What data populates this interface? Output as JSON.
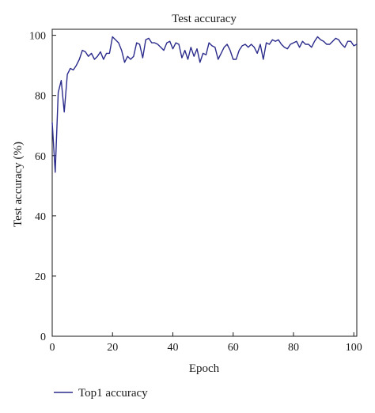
{
  "chart_data": {
    "type": "line",
    "title": "Test accuracy",
    "xlabel": "Epoch",
    "ylabel": "Test accuracy (%)",
    "xlim": [
      0,
      101
    ],
    "ylim": [
      0,
      102
    ],
    "xticks": [
      "0",
      "20",
      "40",
      "60",
      "80",
      "100"
    ],
    "yticks": [
      "0",
      "20",
      "40",
      "60",
      "80",
      "100"
    ],
    "xtick_values": [
      0,
      20,
      40,
      60,
      80,
      100
    ],
    "ytick_values": [
      0,
      20,
      40,
      60,
      80,
      100
    ],
    "grid": false,
    "legend_position": "bottom-left",
    "series": [
      {
        "name": "Top1 accuracy",
        "color": "#2b2b8c",
        "x": [
          0,
          1,
          2,
          3,
          4,
          5,
          6,
          7,
          8,
          9,
          10,
          11,
          12,
          13,
          14,
          15,
          16,
          17,
          18,
          19,
          20,
          21,
          22,
          23,
          24,
          25,
          26,
          27,
          28,
          29,
          30,
          31,
          32,
          33,
          34,
          35,
          36,
          37,
          38,
          39,
          40,
          41,
          42,
          43,
          44,
          45,
          46,
          47,
          48,
          49,
          50,
          51,
          52,
          53,
          54,
          55,
          56,
          57,
          58,
          59,
          60,
          61,
          62,
          63,
          64,
          65,
          66,
          67,
          68,
          69,
          70,
          71,
          72,
          73,
          74,
          75,
          76,
          77,
          78,
          79,
          80,
          81,
          82,
          83,
          84,
          85,
          86,
          87,
          88,
          89,
          90,
          91,
          92,
          93,
          94,
          95,
          96,
          97,
          98,
          99,
          100,
          101
        ],
        "y": [
          71,
          54.5,
          81,
          85,
          74.5,
          87,
          89,
          88.5,
          90,
          92,
          95,
          94.5,
          93,
          94,
          92,
          93,
          94.5,
          92,
          94,
          94,
          99.5,
          98.5,
          97.5,
          95,
          91,
          93,
          92,
          93,
          97.5,
          97,
          92.5,
          98.5,
          99,
          97.5,
          97.5,
          97,
          96,
          95,
          97.5,
          98,
          95.5,
          97.5,
          97,
          92.5,
          95,
          92,
          96,
          93,
          95.5,
          91,
          94,
          93.5,
          97.5,
          96.5,
          96,
          92,
          94,
          96,
          97,
          95,
          92,
          92,
          95,
          96.5,
          97,
          96,
          97,
          96,
          94,
          97,
          92,
          97.5,
          97,
          98.5,
          98,
          98.5,
          97,
          96,
          95.5,
          97,
          97.5,
          98,
          96,
          98,
          97,
          97,
          96,
          98,
          99.5,
          98.5,
          98,
          97,
          97,
          98,
          99,
          98.5,
          97,
          96,
          98,
          98,
          96.5,
          97
        ]
      }
    ]
  }
}
